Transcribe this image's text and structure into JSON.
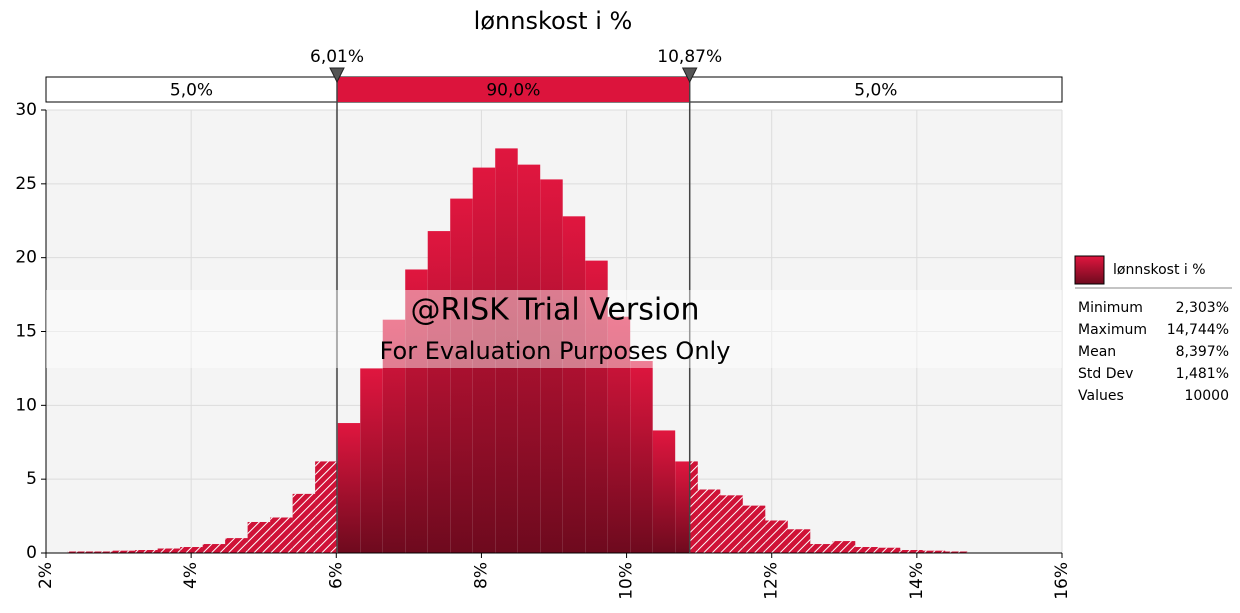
{
  "chart_data": {
    "type": "histogram",
    "title": "lønnskost i %",
    "bins": [
      2.3,
      2.61,
      2.92,
      3.23,
      3.54,
      3.85,
      4.16,
      4.47,
      4.78,
      5.09,
      5.4,
      5.71,
      6.02,
      6.33,
      6.64,
      6.95,
      7.26,
      7.57,
      7.88,
      8.19,
      8.5,
      8.81,
      9.12,
      9.43,
      9.74,
      10.05,
      10.36,
      10.67,
      10.98,
      11.29,
      11.6,
      11.91,
      12.22,
      12.53,
      12.84,
      13.15,
      13.46,
      13.77,
      14.08,
      14.39,
      14.7
    ],
    "values": [
      0.1,
      0.1,
      0.15,
      0.2,
      0.3,
      0.4,
      0.6,
      1.0,
      2.1,
      2.4,
      4.0,
      6.2,
      8.8,
      12.5,
      15.8,
      19.2,
      21.8,
      24.0,
      26.1,
      27.4,
      26.3,
      25.3,
      22.8,
      19.8,
      16.0,
      13.0,
      8.3,
      6.2,
      4.3,
      3.9,
      3.2,
      2.2,
      1.6,
      0.6,
      0.8,
      0.4,
      0.35,
      0.2,
      0.15,
      0.1
    ],
    "color": "#dc143c",
    "xlim": [
      2,
      16
    ],
    "xticks": [
      {
        "value": 2,
        "label": "2%"
      },
      {
        "value": 4,
        "label": "4%"
      },
      {
        "value": 6,
        "label": "6%"
      },
      {
        "value": 8,
        "label": "8%"
      },
      {
        "value": 10,
        "label": "10%"
      },
      {
        "value": 12,
        "label": "12%"
      },
      {
        "value": 14,
        "label": "14%"
      },
      {
        "value": 16,
        "label": "16%"
      }
    ],
    "ylim": [
      0,
      30
    ],
    "yticks": [
      0,
      5,
      10,
      15,
      20,
      25,
      30
    ],
    "grid": true,
    "delimiters": [
      {
        "value": 6.01,
        "label": "6,01%"
      },
      {
        "value": 10.87,
        "label": "10,87%"
      }
    ],
    "bands": [
      "5,0%",
      "90,0%",
      "5,0%"
    ],
    "watermark": [
      "@RISK Trial Version",
      "For Evaluation Purposes Only"
    ],
    "legend": {
      "name": "lønnskost i %",
      "stats": [
        {
          "name": "Minimum",
          "value": "2,303%"
        },
        {
          "name": "Maximum",
          "value": "14,744%"
        },
        {
          "name": "Mean",
          "value": "8,397%"
        },
        {
          "name": "Std Dev",
          "value": "1,481%"
        },
        {
          "name": "Values",
          "value": "10000"
        }
      ]
    }
  }
}
